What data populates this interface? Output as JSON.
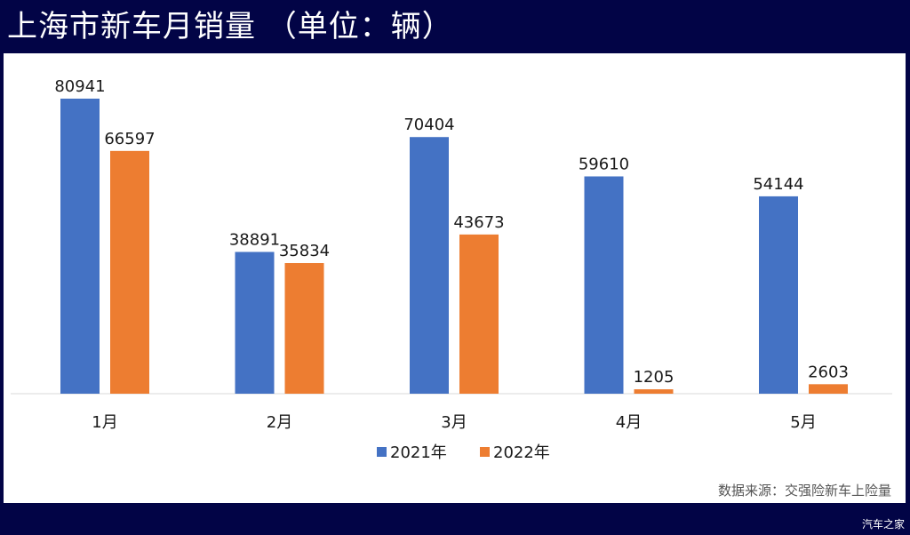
{
  "title": "上海市新车月销量 （单位：辆）",
  "source_note": "数据来源：交强险新车上险量",
  "watermark": "汽车之家",
  "colors": {
    "series_2021": "#4472C4",
    "series_2022": "#ED7D31",
    "background": "#020446"
  },
  "chart_data": {
    "type": "bar",
    "title": "上海市新车月销量 （单位：辆）",
    "categories": [
      "1月",
      "2月",
      "3月",
      "4月",
      "5月"
    ],
    "series": [
      {
        "name": "2021年",
        "values": [
          80941,
          38891,
          70404,
          59610,
          54144
        ]
      },
      {
        "name": "2022年",
        "values": [
          66597,
          35834,
          43673,
          1205,
          2603
        ]
      }
    ],
    "ylim": [
      0,
      80941
    ],
    "grid": false,
    "legend": "bottom",
    "data_labels": true
  }
}
